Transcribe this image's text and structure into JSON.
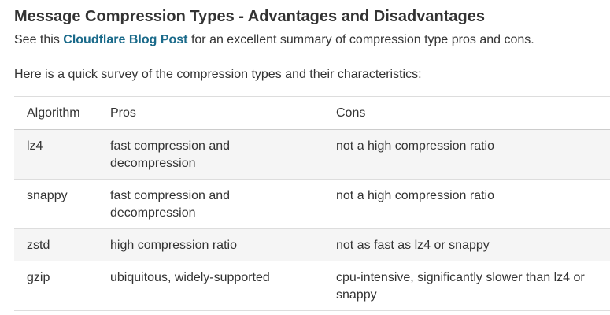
{
  "heading": "Message Compression Types - Advantages and Disadvantages",
  "intro": {
    "before": "See this ",
    "link": "Cloudflare Blog Post",
    "after": " for an excellent summary of compression type pros and cons."
  },
  "survey_text": "Here is a quick survey of the compression types and their characteristics:",
  "table": {
    "headers": [
      "Algorithm",
      "Pros",
      "Cons"
    ],
    "rows": [
      [
        "lz4",
        "fast compression and decompression",
        "not a high compression ratio"
      ],
      [
        "snappy",
        "fast compression and decompression",
        "not a high compression ratio"
      ],
      [
        "zstd",
        "high compression ratio",
        "not as fast as lz4 or snappy"
      ],
      [
        "gzip",
        "ubiquitous, widely-supported",
        "cpu-intensive, significantly slower than lz4 or snappy"
      ]
    ]
  },
  "colors": {
    "link": "#1a6a8a",
    "text": "#333333",
    "row_stripe": "#f5f5f5"
  }
}
